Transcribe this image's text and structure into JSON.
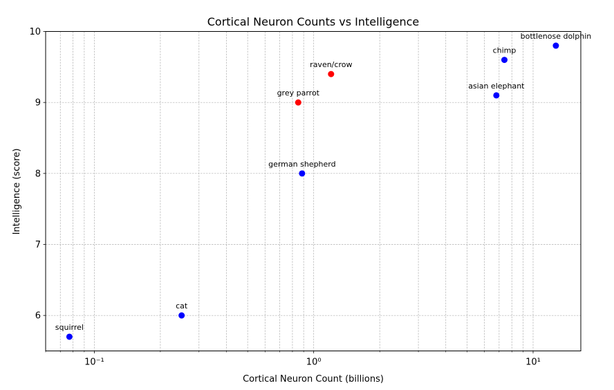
{
  "chart_data": {
    "type": "scatter",
    "title": "Cortical Neuron Counts vs Intelligence",
    "xlabel": "Cortical Neuron Count (billions)",
    "ylabel": "Intelligence (score)",
    "x_scale": "log",
    "xlim": [
      0.06,
      16.5
    ],
    "ylim": [
      5.5,
      10
    ],
    "x_major_ticks": [
      0.1,
      1,
      10
    ],
    "x_tick_labels": [
      "10⁻¹",
      "10⁰",
      "10¹"
    ],
    "y_ticks": [
      6,
      7,
      8,
      9,
      10
    ],
    "y_tick_labels": [
      "6",
      "7",
      "8",
      "9",
      "10"
    ],
    "grid": true,
    "colors": {
      "mammal": "#0000ff",
      "bird": "#ff0000"
    },
    "points": [
      {
        "label": "squirrel",
        "x": 0.077,
        "y": 5.7,
        "color": "#0000ff"
      },
      {
        "label": "cat",
        "x": 0.25,
        "y": 6.0,
        "color": "#0000ff"
      },
      {
        "label": "grey parrot",
        "x": 0.85,
        "y": 9.0,
        "color": "#ff0000"
      },
      {
        "label": "german shepherd",
        "x": 0.885,
        "y": 8.0,
        "color": "#0000ff"
      },
      {
        "label": "raven/crow",
        "x": 1.2,
        "y": 9.4,
        "color": "#ff0000"
      },
      {
        "label": "asian elephant",
        "x": 6.8,
        "y": 9.1,
        "color": "#0000ff"
      },
      {
        "label": "chimp",
        "x": 7.4,
        "y": 9.6,
        "color": "#0000ff"
      },
      {
        "label": "bottlenose dolphin",
        "x": 12.7,
        "y": 9.8,
        "color": "#0000ff"
      }
    ]
  }
}
